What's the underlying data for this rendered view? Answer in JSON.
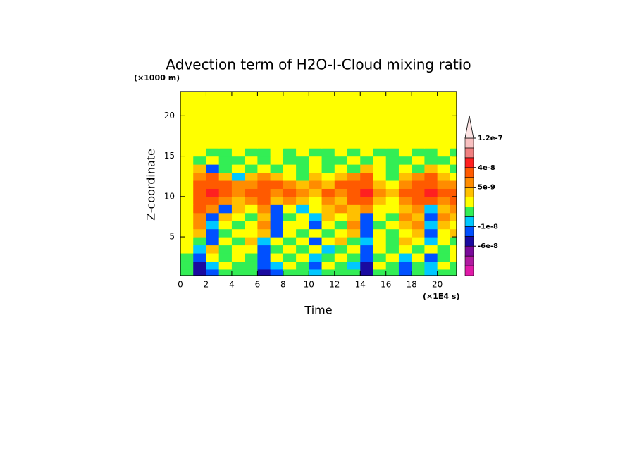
{
  "chart_data": {
    "type": "contour",
    "title": "Advection term of H2O-l-Cloud mixing ratio",
    "x_label": "Time",
    "x_unit": "(×1E4 s)",
    "y_label": "Z-coordinate",
    "y_unit": "(×1000 m)",
    "xlim": [
      0,
      21.5
    ],
    "ylim": [
      0.2,
      23
    ],
    "xticks": [
      0,
      2,
      4,
      6,
      8,
      10,
      12,
      14,
      16,
      18,
      20
    ],
    "yticks": [
      5,
      10,
      15,
      20
    ],
    "x": [
      0.5,
      1.5,
      2.5,
      3.5,
      4.5,
      5.5,
      6.5,
      7.5,
      8.5,
      9.5,
      10.5,
      11.5,
      12.5,
      13.5,
      14.5,
      15.5,
      16.5,
      17.5,
      18.5,
      19.5,
      20.5,
      21.5
    ],
    "y": [
      0.5,
      1.5,
      2.5,
      3.5,
      4.5,
      5.5,
      6.5,
      7.5,
      8.5,
      9.5,
      10.5,
      11.5,
      12.5,
      13.5,
      14.5,
      15.5,
      16.5,
      17.5,
      18.5,
      19.5,
      20.5,
      21.5,
      22.5
    ],
    "levels": [
      -1e-07,
      -8e-08,
      -6e-08,
      -3e-08,
      -1e-08,
      -5e-09,
      -1e-09,
      1e-09,
      5e-09,
      2e-08,
      4e-08,
      6e-08,
      8e-08,
      1.2e-07
    ],
    "colors": [
      "#e01aa8",
      "#b01aa0",
      "#7a0a9a",
      "#1a0aa0",
      "#0050ff",
      "#00c8ff",
      "#33ee55",
      "#ffff00",
      "#ffc000",
      "#ff8c00",
      "#ff5a00",
      "#ff2020",
      "#f08080",
      "#f8c0c0",
      "#fde4e4"
    ],
    "colorbar_ticks": [
      1.2e-07,
      4e-08,
      5e-09,
      -1e-08,
      -6e-08
    ],
    "z": [
      [
        -3e-09,
        -4e-08,
        -2e-08,
        -3e-09,
        -3e-09,
        -3e-09,
        -4e-08,
        -2e-08,
        -3e-09,
        -3e-09,
        -7e-09,
        -3e-09,
        -3e-09,
        -3e-09,
        -4e-08,
        -3e-09,
        -3e-09,
        -2e-08,
        -3e-09,
        -7e-09,
        -3e-09,
        -3e-09
      ],
      [
        -3e-09,
        -4e-08,
        -7e-09,
        0,
        -3e-09,
        -3e-09,
        -2e-08,
        -7e-09,
        0,
        -3e-09,
        -2e-08,
        0,
        -3e-09,
        -7e-09,
        -4e-08,
        0,
        -3e-09,
        -2e-08,
        -3e-09,
        -7e-09,
        0,
        -3e-09
      ],
      [
        -3e-09,
        -2e-08,
        0,
        -3e-09,
        0,
        -3e-09,
        -2e-08,
        0,
        -3e-09,
        0,
        -7e-09,
        -3e-09,
        0,
        -3e-09,
        -2e-08,
        -3e-09,
        0,
        -7e-09,
        0,
        -2e-08,
        -3e-09,
        0
      ],
      [
        0,
        -7e-09,
        3e-09,
        -3e-09,
        0,
        0,
        -2e-08,
        -3e-09,
        0,
        -3e-09,
        0,
        -7e-09,
        -3e-09,
        0,
        -2e-08,
        0,
        -3e-09,
        0,
        -3e-09,
        0,
        -3e-09,
        0
      ],
      [
        0,
        -3e-09,
        -2e-08,
        0,
        -3e-09,
        3e-09,
        -7e-09,
        0,
        -3e-09,
        0,
        -2e-08,
        0,
        3e-09,
        -3e-09,
        -7e-09,
        0,
        -3e-09,
        3e-09,
        0,
        -7e-09,
        0,
        -3e-09
      ],
      [
        0,
        3e-09,
        -2e-08,
        -3e-09,
        0,
        0,
        3e-09,
        -2e-08,
        0,
        -3e-09,
        0,
        -3e-09,
        0,
        3e-09,
        -2e-08,
        0,
        -3e-09,
        0,
        3e-09,
        -2e-08,
        0,
        3e-09
      ],
      [
        0,
        1e-08,
        -7e-09,
        0,
        -3e-09,
        0,
        1e-08,
        -2e-08,
        0,
        0,
        -2e-08,
        0,
        -3e-09,
        1e-08,
        -2e-08,
        -3e-09,
        0,
        3e-09,
        1e-08,
        -7e-09,
        3e-09,
        0
      ],
      [
        0,
        1e-08,
        -2e-08,
        3e-09,
        0,
        -3e-09,
        3e-09,
        -2e-08,
        -3e-09,
        0,
        -7e-09,
        3e-09,
        0,
        3e-09,
        -2e-08,
        0,
        -3e-09,
        1e-08,
        3e-09,
        -2e-08,
        1e-08,
        3e-09
      ],
      [
        0,
        3e-08,
        1e-08,
        -2e-08,
        3e-09,
        0,
        1e-08,
        -2e-08,
        0,
        -7e-09,
        0,
        3e-09,
        1e-08,
        3e-09,
        1e-08,
        0,
        0,
        3e-09,
        1e-08,
        -7e-09,
        3e-09,
        1e-08
      ],
      [
        0,
        3e-08,
        3e-08,
        1e-08,
        3e-09,
        1e-08,
        3e-08,
        3e-09,
        1e-08,
        3e-09,
        0,
        1e-08,
        3e-09,
        3e-08,
        3e-08,
        3e-09,
        0,
        1e-08,
        3e-08,
        3e-08,
        1e-08,
        3e-08
      ],
      [
        0,
        3e-08,
        5e-08,
        3e-08,
        1e-08,
        3e-08,
        3e-08,
        1e-08,
        3e-08,
        1e-08,
        3e-09,
        3e-08,
        1e-08,
        3e-08,
        5e-08,
        1e-08,
        3e-09,
        3e-08,
        3e-08,
        5e-08,
        3e-08,
        3e-08
      ],
      [
        0,
        3e-08,
        3e-08,
        3e-08,
        1e-08,
        1e-08,
        3e-08,
        3e-08,
        1e-08,
        3e-09,
        1e-08,
        3e-09,
        3e-08,
        3e-08,
        3e-08,
        3e-09,
        0,
        1e-08,
        3e-08,
        3e-08,
        1e-08,
        1e-08
      ],
      [
        0,
        1e-08,
        3e-08,
        3e-09,
        -7e-09,
        3e-09,
        1e-08,
        3e-09,
        0,
        -3e-09,
        3e-09,
        0,
        3e-09,
        1e-08,
        3e-08,
        0,
        -3e-09,
        3e-09,
        1e-08,
        3e-08,
        3e-09,
        0
      ],
      [
        0,
        3e-09,
        -2e-08,
        -3e-09,
        0,
        -3e-09,
        0,
        -3e-09,
        0,
        -3e-09,
        0,
        -3e-09,
        0,
        -3e-09,
        3e-09,
        0,
        -3e-09,
        0,
        -3e-09,
        3e-09,
        0,
        -3e-09
      ],
      [
        0,
        -3e-09,
        0,
        -3e-09,
        -3e-09,
        0,
        -3e-09,
        0,
        -3e-09,
        -3e-09,
        0,
        -3e-09,
        -3e-09,
        0,
        -3e-09,
        0,
        -3e-09,
        -3e-09,
        0,
        -3e-09,
        -3e-09,
        0
      ],
      [
        0,
        0,
        -3e-09,
        -3e-09,
        0,
        -3e-09,
        -3e-09,
        0,
        -3e-09,
        0,
        -3e-09,
        -3e-09,
        0,
        -3e-09,
        0,
        -3e-09,
        -3e-09,
        0,
        -3e-09,
        -3e-09,
        0,
        -3e-09
      ],
      [
        0,
        0,
        0,
        0,
        0,
        0,
        0,
        0,
        0,
        0,
        0,
        0,
        0,
        0,
        0,
        0,
        0,
        0,
        0,
        0,
        0,
        0
      ],
      [
        0,
        0,
        0,
        0,
        0,
        0,
        0,
        0,
        0,
        0,
        0,
        0,
        0,
        0,
        0,
        0,
        0,
        0,
        0,
        0,
        0,
        0
      ],
      [
        0,
        0,
        0,
        0,
        0,
        0,
        0,
        0,
        0,
        0,
        0,
        0,
        0,
        0,
        0,
        0,
        0,
        0,
        0,
        0,
        0,
        0
      ],
      [
        0,
        0,
        0,
        0,
        0,
        0,
        0,
        0,
        0,
        0,
        0,
        0,
        0,
        0,
        0,
        0,
        0,
        0,
        0,
        0,
        0,
        0
      ],
      [
        0,
        0,
        0,
        0,
        0,
        0,
        0,
        0,
        0,
        0,
        0,
        0,
        0,
        0,
        0,
        0,
        0,
        0,
        0,
        0,
        0,
        0
      ],
      [
        0,
        0,
        0,
        0,
        0,
        0,
        0,
        0,
        0,
        0,
        0,
        0,
        0,
        0,
        0,
        0,
        0,
        0,
        0,
        0,
        0,
        0
      ],
      [
        0,
        0,
        0,
        0,
        0,
        0,
        0,
        0,
        0,
        0,
        0,
        0,
        0,
        0,
        0,
        0,
        0,
        0,
        0,
        0,
        0,
        0
      ]
    ]
  }
}
